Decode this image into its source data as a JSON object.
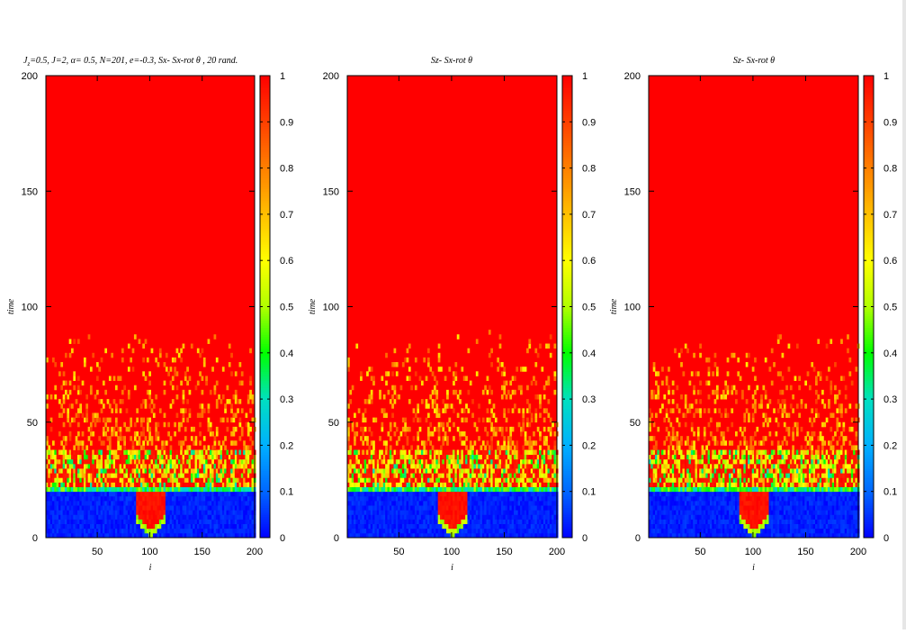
{
  "chart_data": [
    {
      "type": "heatmap",
      "title": "Jz=0.5,  J=2, α= 0.5,   N=201,  e=-0.3, Sx- Sx-rot θ , 20 rand.",
      "title_parts": {
        "j": "J",
        "z": "z",
        "rest": "=0.5,  J=2, α= 0.5,   N=201,  e=-0.3, Sx- Sx-rot θ , 20 rand."
      },
      "xlabel": "i",
      "ylabel": "time",
      "xlim": [
        1,
        200
      ],
      "ylim": [
        0,
        200
      ],
      "xticks": [
        "50",
        "100",
        "150",
        "200"
      ],
      "yticks": [
        "0",
        "50",
        "100",
        "150",
        "200"
      ],
      "colorbar": {
        "range": [
          0,
          1
        ],
        "ticks": [
          "0",
          "0.1",
          "0.2",
          "0.3",
          "0.4",
          "0.5",
          "0.6",
          "0.7",
          "0.8",
          "0.9",
          "1"
        ]
      },
      "field": {
        "front_time": 21,
        "cone_center": 100,
        "cone_start_time": 0,
        "noise_until": 90
      }
    },
    {
      "type": "heatmap",
      "title": "Sz- Sx-rot θ",
      "xlabel": "i",
      "ylabel": "time",
      "xlim": [
        1,
        200
      ],
      "ylim": [
        0,
        200
      ],
      "xticks": [
        "50",
        "100",
        "150",
        "200"
      ],
      "yticks": [
        "0",
        "50",
        "100",
        "150",
        "200"
      ],
      "colorbar": {
        "range": [
          0,
          1
        ],
        "ticks": [
          "0",
          "0.1",
          "0.2",
          "0.3",
          "0.4",
          "0.5",
          "0.6",
          "0.7",
          "0.8",
          "0.9",
          "1"
        ]
      },
      "field": {
        "front_time": 21,
        "cone_center": 100,
        "cone_start_time": 0,
        "noise_until": 90
      }
    },
    {
      "type": "heatmap",
      "title": "Sz- Sx-rot θ",
      "xlabel": "i",
      "ylabel": "time",
      "xlim": [
        1,
        200
      ],
      "ylim": [
        0,
        200
      ],
      "xticks": [
        "50",
        "100",
        "150",
        "200"
      ],
      "yticks": [
        "0",
        "50",
        "100",
        "150",
        "200"
      ],
      "colorbar": {
        "range": [
          0,
          1
        ],
        "ticks": [
          "0",
          "0.1",
          "0.2",
          "0.3",
          "0.4",
          "0.5",
          "0.6",
          "0.7",
          "0.8",
          "0.9",
          "1"
        ]
      },
      "field": {
        "front_time": 21,
        "cone_center": 100,
        "cone_start_time": 0,
        "noise_until": 90
      }
    }
  ],
  "colors": {
    "scale": [
      "#0000ff",
      "#0066ff",
      "#00b0ff",
      "#00e0c0",
      "#00ff00",
      "#b0ff00",
      "#ffff00",
      "#ffc000",
      "#ff8000",
      "#ff4000",
      "#ff0000"
    ],
    "background": "#ffffff",
    "axis": "#000000"
  }
}
